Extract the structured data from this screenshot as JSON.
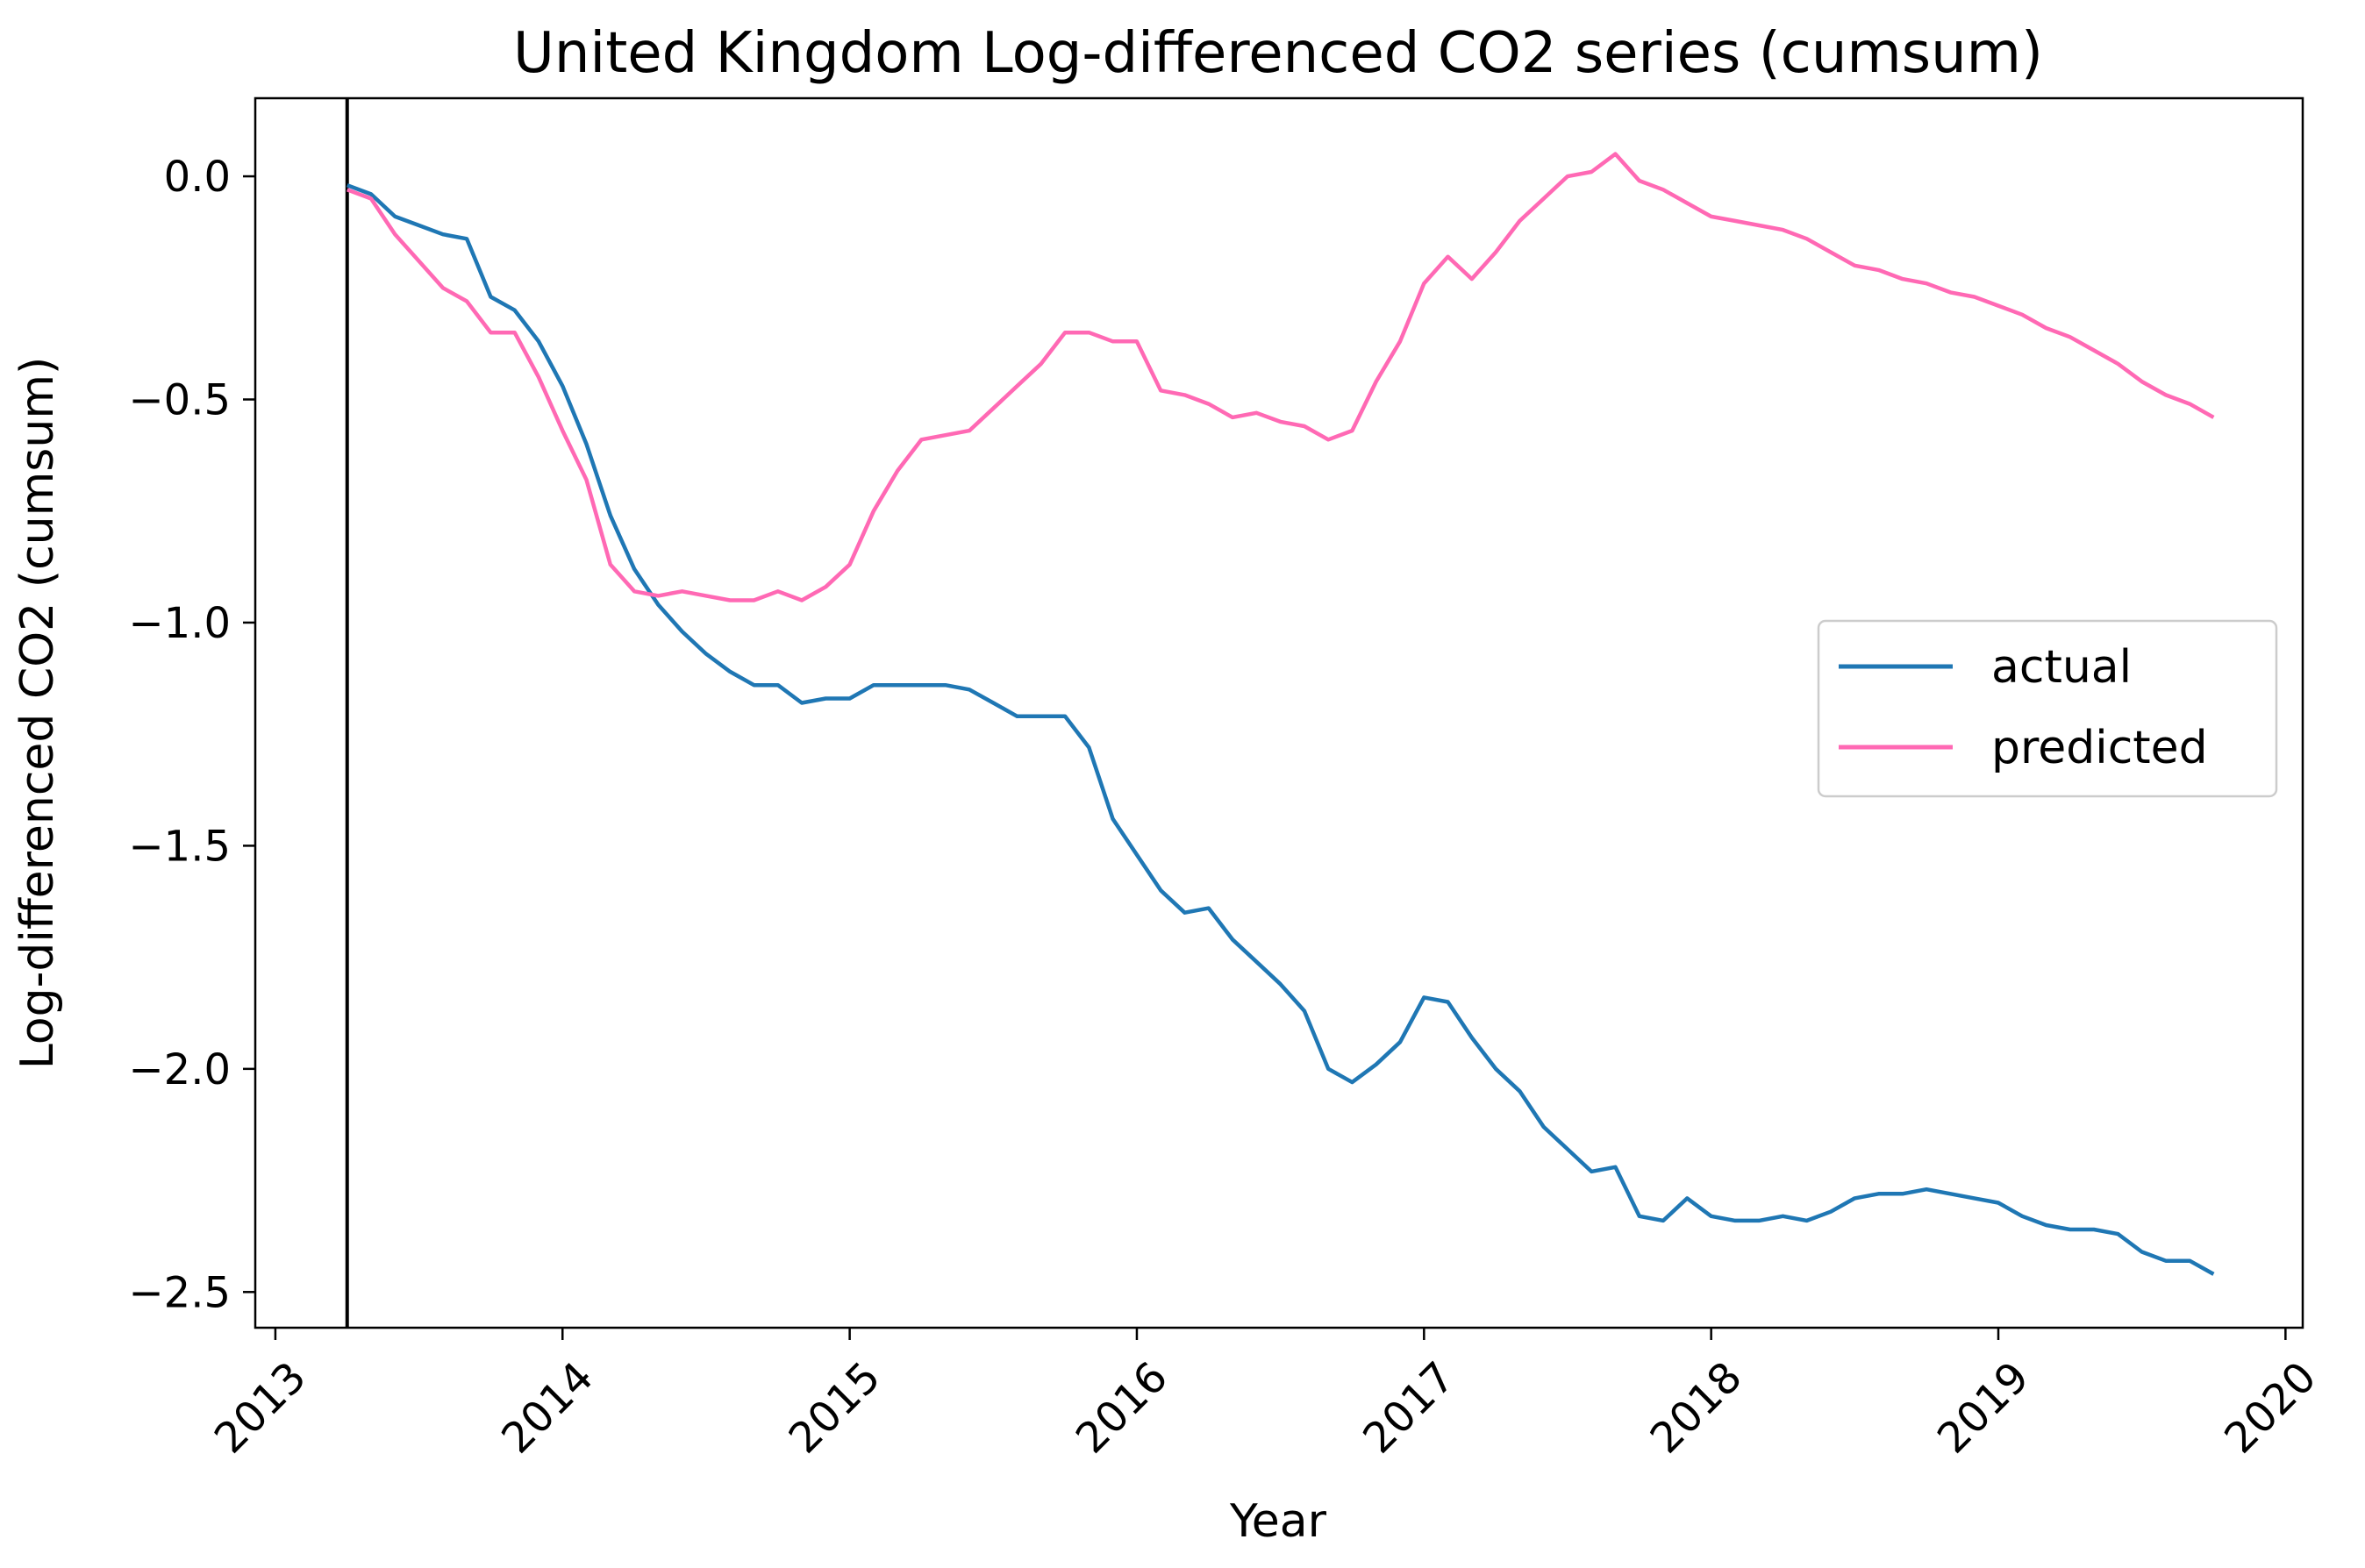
{
  "chart_data": {
    "type": "line",
    "title": "United Kingdom Log-differenced CO2 series (cumsum)",
    "xlabel": "Year",
    "ylabel": "Log-differenced CO2 (cumsum)",
    "xlim": [
      2012.93,
      2020.06
    ],
    "ylim": [
      -2.58,
      0.175
    ],
    "xticks": [
      2013,
      2014,
      2015,
      2016,
      2017,
      2018,
      2019,
      2020
    ],
    "xtick_labels": [
      "2013",
      "2014",
      "2015",
      "2016",
      "2017",
      "2018",
      "2019",
      "2020"
    ],
    "yticks": [
      0.0,
      -0.5,
      -1.0,
      -1.5,
      -2.0,
      -2.5
    ],
    "ytick_labels": [
      "0.0",
      "−0.5",
      "−1.0",
      "−1.5",
      "−2.0",
      "−2.5"
    ],
    "grid": false,
    "legend_position": "center-right",
    "vline_x": 2013.25,
    "vline_color": "#000000",
    "x_start": 2013.25,
    "x_step": 0.08333,
    "series": [
      {
        "name": "actual",
        "color": "#1f77b4",
        "values": [
          -0.02,
          -0.04,
          -0.09,
          -0.11,
          -0.13,
          -0.14,
          -0.27,
          -0.3,
          -0.37,
          -0.47,
          -0.6,
          -0.76,
          -0.88,
          -0.96,
          -1.02,
          -1.07,
          -1.11,
          -1.14,
          -1.14,
          -1.18,
          -1.17,
          -1.17,
          -1.14,
          -1.14,
          -1.14,
          -1.14,
          -1.15,
          -1.18,
          -1.21,
          -1.21,
          -1.21,
          -1.28,
          -1.44,
          -1.52,
          -1.6,
          -1.65,
          -1.64,
          -1.71,
          -1.76,
          -1.81,
          -1.87,
          -2.0,
          -2.03,
          -1.99,
          -1.94,
          -1.84,
          -1.85,
          -1.93,
          -2.0,
          -2.05,
          -2.13,
          -2.18,
          -2.23,
          -2.22,
          -2.33,
          -2.34,
          -2.29,
          -2.33,
          -2.34,
          -2.34,
          -2.33,
          -2.34,
          -2.32,
          -2.29,
          -2.28,
          -2.28,
          -2.27,
          -2.28,
          -2.29,
          -2.3,
          -2.33,
          -2.35,
          -2.36,
          -2.36,
          -2.37,
          -2.41,
          -2.43,
          -2.43,
          -2.46
        ]
      },
      {
        "name": "predicted",
        "color": "#ff69b4",
        "values": [
          -0.03,
          -0.05,
          -0.13,
          -0.19,
          -0.25,
          -0.28,
          -0.35,
          -0.35,
          -0.45,
          -0.57,
          -0.68,
          -0.87,
          -0.93,
          -0.94,
          -0.93,
          -0.94,
          -0.95,
          -0.95,
          -0.93,
          -0.95,
          -0.92,
          -0.87,
          -0.75,
          -0.66,
          -0.59,
          -0.58,
          -0.57,
          -0.52,
          -0.47,
          -0.42,
          -0.35,
          -0.35,
          -0.37,
          -0.37,
          -0.48,
          -0.49,
          -0.51,
          -0.54,
          -0.53,
          -0.55,
          -0.56,
          -0.59,
          -0.57,
          -0.46,
          -0.37,
          -0.24,
          -0.18,
          -0.23,
          -0.17,
          -0.1,
          -0.05,
          0.0,
          0.01,
          0.05,
          -0.01,
          -0.03,
          -0.06,
          -0.09,
          -0.1,
          -0.11,
          -0.12,
          -0.14,
          -0.17,
          -0.2,
          -0.21,
          -0.23,
          -0.24,
          -0.26,
          -0.27,
          -0.29,
          -0.31,
          -0.34,
          -0.36,
          -0.39,
          -0.42,
          -0.46,
          -0.49,
          -0.51,
          -0.54
        ]
      }
    ]
  }
}
